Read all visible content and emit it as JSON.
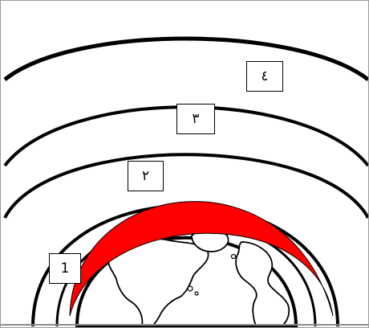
{
  "diagram": {
    "labels": [
      "1",
      "٢",
      "٣",
      "٤"
    ],
    "colors": {
      "outline": "#000000",
      "highlight_band": "#ff0000",
      "background": "#ffffff",
      "frame": "#9a9a9a"
    },
    "icons": {
      "planet": "earth-globe-icon"
    }
  }
}
